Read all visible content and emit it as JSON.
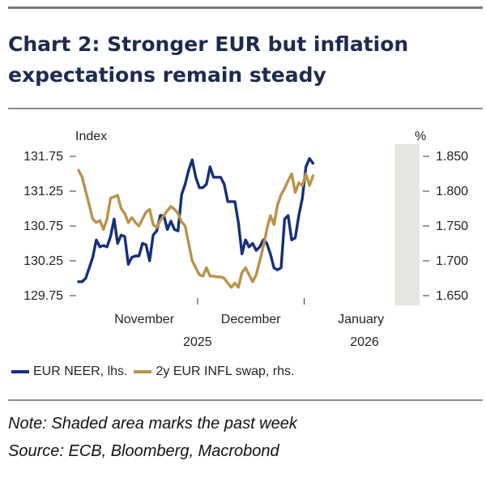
{
  "title": "Chart 2: Stronger EUR but inflation expectations remain steady",
  "note": "Note: Shaded area marks the past week",
  "source": "Source: ECB, Bloomberg, Macrobond",
  "chart_data": {
    "type": "line",
    "left_axis_label": "Index",
    "right_axis_label": "%",
    "left_ticks": [
      "131.75",
      "131.25",
      "130.75",
      "130.25",
      "129.75"
    ],
    "right_ticks": [
      "1.850",
      "1.800",
      "1.750",
      "1.700",
      "1.650"
    ],
    "left_ylim": [
      129.75,
      131.75
    ],
    "right_ylim": [
      1.65,
      1.85
    ],
    "x_labels": [
      {
        "label": "November",
        "x": 18.5
      },
      {
        "label": "December",
        "x": 48.5
      },
      {
        "label": "January",
        "x": 79.5
      }
    ],
    "year_labels": [
      {
        "label": "2025",
        "x": 33.5
      },
      {
        "label": "2026",
        "x": 80.5
      }
    ],
    "x_range": [
      0,
      96
    ],
    "highlight_range": [
      89,
      96
    ],
    "colors": {
      "neer": "#15307a",
      "infl": "#b8934a",
      "shade": "#e6e6e0"
    },
    "series": [
      {
        "name": "EUR NEER, lhs.",
        "axis": "left",
        "color": "#15307a",
        "values": [
          [
            0,
            129.95
          ],
          [
            1,
            129.95
          ],
          [
            2,
            130.0
          ],
          [
            3,
            130.15
          ],
          [
            4,
            130.3
          ],
          [
            5,
            130.55
          ],
          [
            6,
            130.45
          ],
          [
            7,
            130.47
          ],
          [
            8,
            130.45
          ],
          [
            9,
            130.6
          ],
          [
            10,
            130.85
          ],
          [
            11,
            130.5
          ],
          [
            12,
            130.62
          ],
          [
            13,
            130.6
          ],
          [
            14,
            130.2
          ],
          [
            15,
            130.3
          ],
          [
            16,
            130.32
          ],
          [
            17,
            130.32
          ],
          [
            18,
            130.5
          ],
          [
            19,
            130.48
          ],
          [
            20,
            130.25
          ],
          [
            21,
            130.62
          ],
          [
            22,
            130.68
          ],
          [
            23,
            130.9
          ],
          [
            24,
            130.9
          ],
          [
            25,
            130.7
          ],
          [
            26,
            130.82
          ],
          [
            27,
            130.7
          ],
          [
            28,
            130.68
          ],
          [
            29,
            131.2
          ],
          [
            30,
            131.35
          ],
          [
            31,
            131.55
          ],
          [
            32,
            131.7
          ],
          [
            33,
            131.45
          ],
          [
            34,
            131.3
          ],
          [
            35,
            131.3
          ],
          [
            36,
            131.35
          ],
          [
            37,
            131.6
          ],
          [
            38,
            131.45
          ],
          [
            39,
            131.45
          ],
          [
            40,
            131.45
          ],
          [
            41,
            131.35
          ],
          [
            42,
            131.1
          ],
          [
            43,
            131.1
          ],
          [
            44,
            131.1
          ],
          [
            45,
            130.8
          ],
          [
            46,
            130.35
          ],
          [
            47,
            130.55
          ],
          [
            48,
            130.45
          ],
          [
            49,
            130.5
          ],
          [
            50,
            130.4
          ],
          [
            51,
            130.45
          ],
          [
            52,
            130.55
          ],
          [
            53,
            130.5
          ],
          [
            54,
            130.35
          ],
          [
            55,
            130.15
          ],
          [
            56,
            130.12
          ],
          [
            57,
            130.15
          ],
          [
            58,
            130.85
          ],
          [
            59,
            130.9
          ],
          [
            60,
            130.55
          ],
          [
            61,
            130.58
          ],
          [
            62,
            130.9
          ],
          [
            63,
            131.15
          ],
          [
            64,
            131.6
          ],
          [
            65,
            131.72
          ],
          [
            66,
            131.65
          ]
        ]
      },
      {
        "name": "2y EUR INFL swap, rhs.",
        "axis": "right",
        "color": "#b8934a",
        "values": [
          [
            0,
            1.83
          ],
          [
            1,
            1.82
          ],
          [
            2,
            1.8
          ],
          [
            3,
            1.78
          ],
          [
            4,
            1.76
          ],
          [
            5,
            1.755
          ],
          [
            6,
            1.758
          ],
          [
            7,
            1.745
          ],
          [
            8,
            1.76
          ],
          [
            9,
            1.79
          ],
          [
            10,
            1.792
          ],
          [
            11,
            1.794
          ],
          [
            12,
            1.775
          ],
          [
            13,
            1.768
          ],
          [
            14,
            1.755
          ],
          [
            15,
            1.762
          ],
          [
            16,
            1.755
          ],
          [
            17,
            1.75
          ],
          [
            18,
            1.76
          ],
          [
            19,
            1.77
          ],
          [
            20,
            1.774
          ],
          [
            21,
            1.752
          ],
          [
            22,
            1.748
          ],
          [
            23,
            1.758
          ],
          [
            24,
            1.765
          ],
          [
            25,
            1.772
          ],
          [
            26,
            1.778
          ],
          [
            27,
            1.774
          ],
          [
            28,
            1.768
          ],
          [
            29,
            1.756
          ],
          [
            30,
            1.75
          ],
          [
            31,
            1.725
          ],
          [
            32,
            1.7
          ],
          [
            33,
            1.69
          ],
          [
            34,
            1.68
          ],
          [
            35,
            1.678
          ],
          [
            36,
            1.69
          ],
          [
            37,
            1.678
          ],
          [
            38,
            1.678
          ],
          [
            39,
            1.677
          ],
          [
            40,
            1.677
          ],
          [
            41,
            1.675
          ],
          [
            42,
            1.668
          ],
          [
            43,
            1.662
          ],
          [
            44,
            1.668
          ],
          [
            45,
            1.662
          ],
          [
            46,
            1.683
          ],
          [
            47,
            1.69
          ],
          [
            48,
            1.68
          ],
          [
            49,
            1.67
          ],
          [
            50,
            1.68
          ],
          [
            51,
            1.7
          ],
          [
            52,
            1.72
          ],
          [
            53,
            1.745
          ],
          [
            54,
            1.765
          ],
          [
            55,
            1.752
          ],
          [
            56,
            1.78
          ],
          [
            57,
            1.795
          ],
          [
            58,
            1.804
          ],
          [
            59,
            1.815
          ],
          [
            60,
            1.825
          ],
          [
            61,
            1.798
          ],
          [
            62,
            1.812
          ],
          [
            63,
            1.808
          ],
          [
            64,
            1.825
          ],
          [
            65,
            1.808
          ],
          [
            66,
            1.822
          ]
        ]
      }
    ]
  }
}
